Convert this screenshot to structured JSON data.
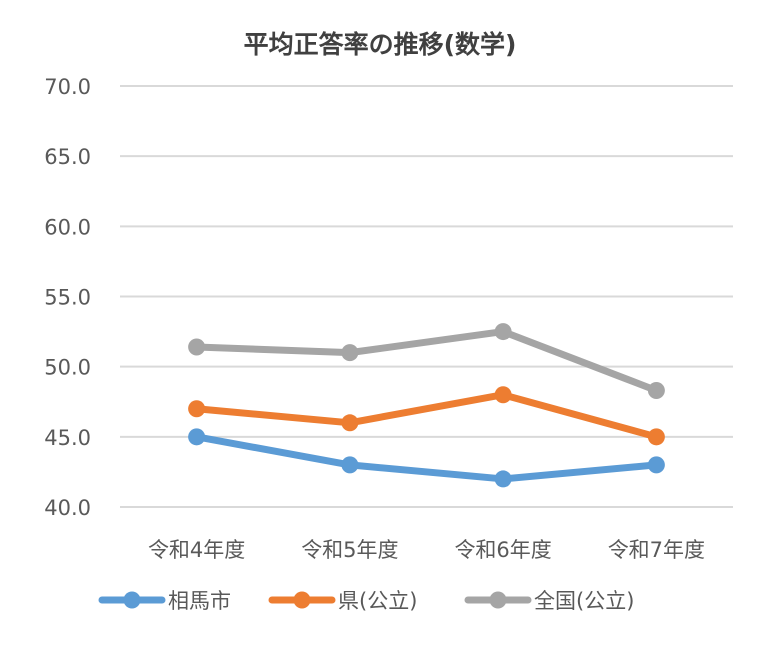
{
  "chart_data": {
    "type": "line",
    "title": "平均正答率の推移(数学)",
    "categories": [
      "令和4年度",
      "令和5年度",
      "令和6年度",
      "令和7年度"
    ],
    "ylim": [
      40.0,
      70.0
    ],
    "yticks": [
      "40.0",
      "45.0",
      "50.0",
      "55.0",
      "60.0",
      "65.0",
      "70.0"
    ],
    "grid": true,
    "legend": "bottom",
    "series": [
      {
        "name": "相馬市",
        "color": "#5B9BD5",
        "values": [
          45.0,
          43.0,
          42.0,
          43.0
        ]
      },
      {
        "name": "県(公立)",
        "color": "#ED7D31",
        "values": [
          47.0,
          46.0,
          48.0,
          45.0
        ]
      },
      {
        "name": "全国(公立)",
        "color": "#A5A5A5",
        "values": [
          51.4,
          51.0,
          52.5,
          48.3
        ]
      }
    ]
  }
}
